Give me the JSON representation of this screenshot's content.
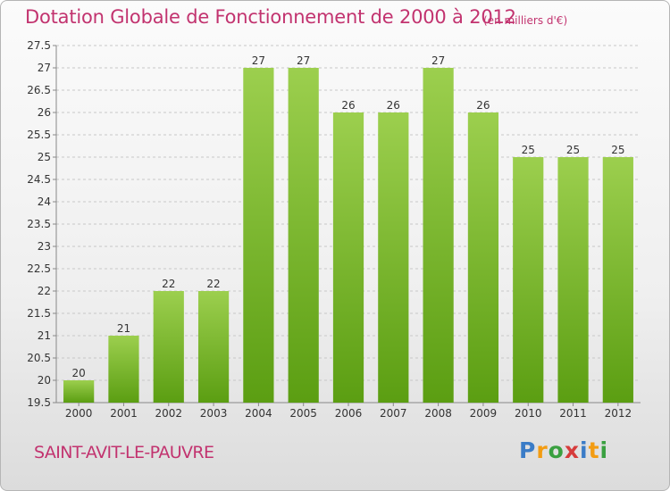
{
  "header": {
    "title": "Dotation Globale de Fonctionnement de 2000 à 2012",
    "unit_note": "(en milliers d'€)"
  },
  "footer": {
    "commune": "SAINT-AVIT-LE-PAUVRE",
    "logo_text": "Proxiti",
    "logo_colors": [
      "#3a7cc7",
      "#f39c12",
      "#3aa040",
      "#d63b3b",
      "#3a7cc7",
      "#f39c12",
      "#3aa040"
    ]
  },
  "colors": {
    "title": "#c2336f",
    "bar_top": "#9ccf4e",
    "bar_bottom": "#5b9e12",
    "grid": "#c8c8c8",
    "axis_text": "#333333"
  },
  "chart_data": {
    "type": "bar",
    "title": "Dotation Globale de Fonctionnement de 2000 à 2012",
    "subtitle": "(en milliers d'€)",
    "xlabel": "",
    "ylabel": "",
    "categories": [
      "2000",
      "2001",
      "2002",
      "2003",
      "2004",
      "2005",
      "2006",
      "2007",
      "2008",
      "2009",
      "2010",
      "2011",
      "2012"
    ],
    "values": [
      20,
      21,
      22,
      22,
      27,
      27,
      26,
      26,
      27,
      26,
      25,
      25,
      25
    ],
    "ylim": [
      19.5,
      27.5
    ],
    "yticks": [
      "19.5",
      "20",
      "20.5",
      "21",
      "21.5",
      "22",
      "22.5",
      "23",
      "23.5",
      "24",
      "24.5",
      "25",
      "25.5",
      "26",
      "26.5",
      "27",
      "27.5"
    ],
    "grid": true,
    "data_labels": true
  }
}
